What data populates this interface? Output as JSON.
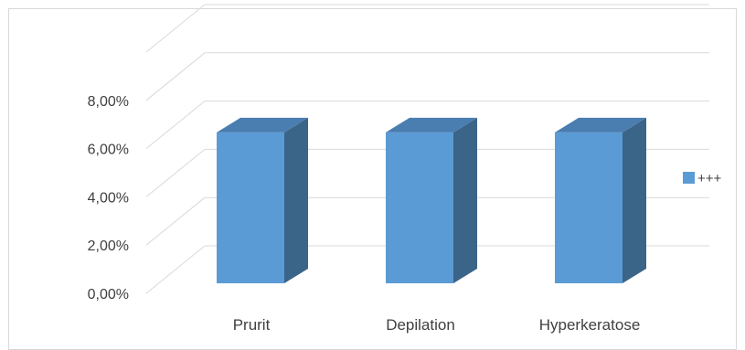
{
  "chart_data": {
    "type": "bar",
    "style": "3d-column",
    "categories": [
      "Prurit",
      "Depilation",
      "Hyperkeratose"
    ],
    "series": [
      {
        "name": "+++",
        "values": [
          6.67,
          6.67,
          6.67
        ],
        "color": "#5b9bd5"
      }
    ],
    "ylim": [
      0,
      8
    ],
    "yticks": [
      "0,00%",
      "2,00%",
      "4,00%",
      "6,00%",
      "8,00%"
    ],
    "ytick_values": [
      0,
      2,
      4,
      6,
      8
    ],
    "ymax_gridline": 10,
    "grid": true,
    "legend_position": "right",
    "title": "",
    "xlabel": "",
    "ylabel": ""
  }
}
